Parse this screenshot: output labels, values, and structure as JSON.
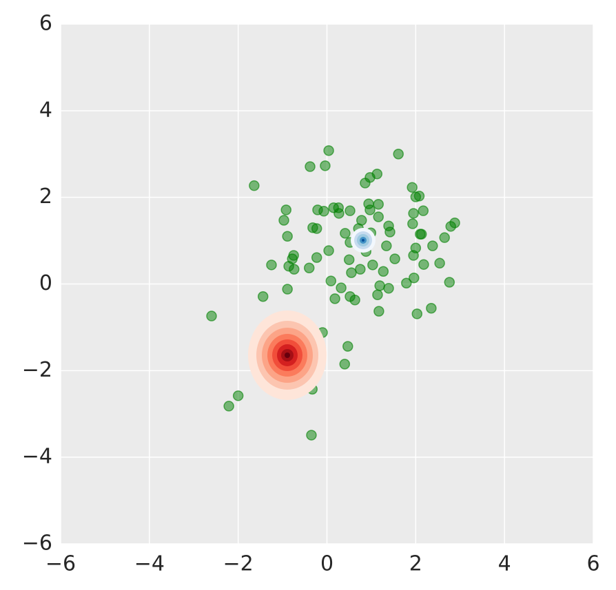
{
  "chart_data": {
    "type": "scatter",
    "x": [
      0.04,
      1.61,
      -0.38,
      -0.04,
      -1.64,
      1.13,
      0.97,
      0.86,
      1.92,
      2.0,
      2.08,
      -0.92,
      -0.21,
      -0.07,
      0.15,
      0.26,
      0.27,
      0.52,
      0.94,
      1.16,
      0.97,
      2.17,
      1.95,
      -0.97,
      0.78,
      1.16,
      -0.32,
      -0.23,
      0.41,
      0.71,
      0.99,
      1.39,
      1.42,
      1.93,
      2.1,
      2.13,
      2.88,
      2.79,
      -0.89,
      0.52,
      0.88,
      1.34,
      2.38,
      2.0,
      2.65,
      0.04,
      -0.75,
      -0.78,
      -1.25,
      -0.86,
      -0.74,
      -0.4,
      -0.23,
      0.5,
      1.95,
      1.53,
      1.03,
      0.75,
      0.55,
      1.27,
      2.18,
      2.54,
      0.09,
      1.96,
      1.79,
      2.76,
      0.32,
      1.19,
      1.39,
      -0.89,
      -1.44,
      0.18,
      0.52,
      0.63,
      1.14,
      1.17,
      2.35,
      2.03,
      -2.6,
      -0.86,
      -0.1,
      0.47,
      0.4,
      -0.33,
      -2.0,
      -2.21,
      -0.35
    ],
    "series": [
      {
        "color": "#008000",
        "values": [
          3.08,
          3.0,
          2.71,
          2.73,
          2.27,
          2.54,
          2.46,
          2.33,
          2.23,
          2.01,
          2.03,
          1.71,
          1.71,
          1.68,
          1.76,
          1.76,
          1.63,
          1.69,
          1.85,
          1.84,
          1.71,
          1.69,
          1.63,
          1.47,
          1.47,
          1.55,
          1.3,
          1.28,
          1.17,
          1.28,
          1.18,
          1.34,
          1.2,
          1.39,
          1.15,
          1.15,
          1.41,
          1.33,
          1.1,
          0.96,
          0.75,
          0.88,
          0.88,
          0.83,
          1.07,
          0.77,
          0.66,
          0.58,
          0.44,
          0.41,
          0.34,
          0.37,
          0.61,
          0.56,
          0.66,
          0.58,
          0.44,
          0.34,
          0.26,
          0.29,
          0.45,
          0.48,
          0.07,
          0.14,
          0.02,
          0.04,
          -0.09,
          -0.04,
          -0.1,
          -0.12,
          -0.29,
          -0.34,
          -0.29,
          -0.37,
          -0.25,
          -0.63,
          -0.56,
          -0.69,
          -0.74,
          -0.79,
          -1.12,
          -1.44,
          -1.85,
          -2.43,
          -2.58,
          -2.82,
          -3.49
        ]
      }
    ],
    "xlim": [
      -6,
      6
    ],
    "ylim": [
      -6,
      6
    ],
    "xticks": [
      {
        "value": -6,
        "label": "−6"
      },
      {
        "value": -4,
        "label": "−4"
      },
      {
        "value": -2,
        "label": "−2"
      },
      0,
      2,
      4,
      6
    ],
    "yticks": [
      {
        "value": -6,
        "label": "−6"
      },
      {
        "value": -4,
        "label": "−4"
      },
      {
        "value": -2,
        "label": "−2"
      },
      0,
      2,
      4,
      6
    ],
    "grid": true
  }
}
